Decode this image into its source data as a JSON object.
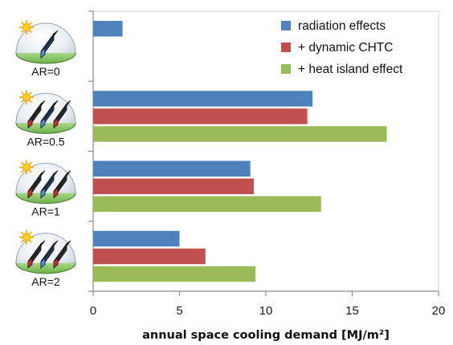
{
  "chart_data": {
    "type": "bar",
    "orientation": "horizontal",
    "categories": [
      "AR=0",
      "AR=0.5",
      "AR=1",
      "AR=2"
    ],
    "series": [
      {
        "name": "radiation effects",
        "color": "#4f81bd",
        "values": [
          1.7,
          12.7,
          9.1,
          5.0
        ]
      },
      {
        "name": "+ dynamic CHTC",
        "color": "#c0504d",
        "values": [
          null,
          12.4,
          9.3,
          6.5
        ]
      },
      {
        "name": "+ heat island effect",
        "color": "#9bbb59",
        "values": [
          null,
          17.0,
          13.2,
          9.4
        ]
      }
    ],
    "xlabel": "annual space cooling demand [MJ/m²]",
    "ylabel": "",
    "xlim": [
      0,
      20
    ],
    "xticks": [
      "0",
      "5",
      "10",
      "15",
      "20"
    ],
    "legend_position": "top-right",
    "grid": false
  },
  "category_icons": [
    {
      "name": "single-building-icon",
      "bars": 1
    },
    {
      "name": "three-buildings-icon",
      "bars": 3
    },
    {
      "name": "three-buildings-icon",
      "bars": 3
    },
    {
      "name": "three-buildings-icon",
      "bars": 3
    }
  ]
}
